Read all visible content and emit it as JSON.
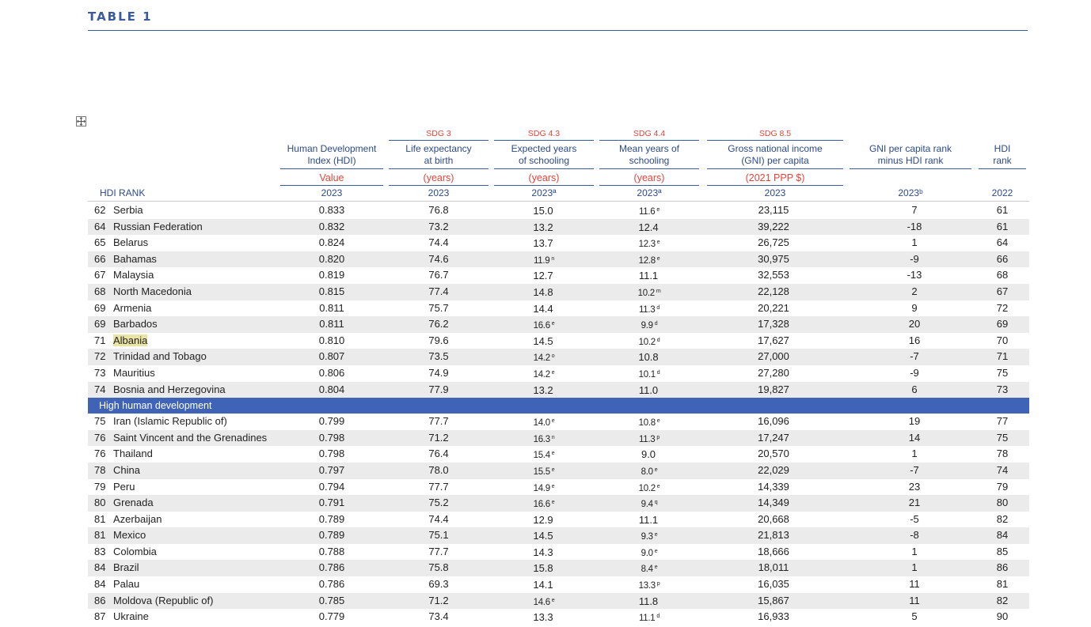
{
  "title": "TABLE 1",
  "header": {
    "hdi_rank_label": "HDI RANK",
    "columns": [
      {
        "sdg": "",
        "name_line1": "Human Development",
        "name_line2": "Index (HDI)",
        "unit": "Value",
        "year": "2023"
      },
      {
        "sdg": "SDG 3",
        "name_line1": "Life expectancy",
        "name_line2": "at birth",
        "unit": "(years)",
        "year": "2023"
      },
      {
        "sdg": "SDG 4.3",
        "name_line1": "Expected years",
        "name_line2": "of schooling",
        "unit": "(years)",
        "year": "2023ª"
      },
      {
        "sdg": "SDG 4.4",
        "name_line1": "Mean years of",
        "name_line2": "schooling",
        "unit": "(years)",
        "year": "2023ª"
      },
      {
        "sdg": "SDG 8.5",
        "name_line1": "Gross national income",
        "name_line2": "(GNI) per capita",
        "unit": "(2021 PPP $)",
        "year": "2023"
      },
      {
        "sdg": "",
        "name_line1": "GNI per capita rank",
        "name_line2": "minus HDI rank",
        "unit": "",
        "year": "2023ᵇ"
      },
      {
        "sdg": "",
        "name_line1": "HDI",
        "name_line2": "rank",
        "unit": "",
        "year": "2022"
      }
    ]
  },
  "section_high": "High human development",
  "rows_top": [
    {
      "rank": "62",
      "country": "Serbia",
      "hdi": "0.833",
      "life": "76.8",
      "exp": "15.0",
      "exp_note": "",
      "mean": "11.6",
      "mean_note": "e",
      "gni": "23,115",
      "gni_rank": "7",
      "hdi2022": "61"
    },
    {
      "rank": "64",
      "country": "Russian Federation",
      "hdi": "0.832",
      "life": "73.2",
      "exp": "13.2",
      "exp_note": "",
      "mean": "12.4",
      "mean_note": "",
      "gni": "39,222",
      "gni_rank": "-18",
      "hdi2022": "61"
    },
    {
      "rank": "65",
      "country": "Belarus",
      "hdi": "0.824",
      "life": "74.4",
      "exp": "13.7",
      "exp_note": "",
      "mean": "12.3",
      "mean_note": "e",
      "gni": "26,725",
      "gni_rank": "1",
      "hdi2022": "64"
    },
    {
      "rank": "66",
      "country": "Bahamas",
      "hdi": "0.820",
      "life": "74.6",
      "exp": "11.9",
      "exp_note": "n",
      "mean": "12.8",
      "mean_note": "e",
      "gni": "30,975",
      "gni_rank": "-9",
      "hdi2022": "66"
    },
    {
      "rank": "67",
      "country": "Malaysia",
      "hdi": "0.819",
      "life": "76.7",
      "exp": "12.7",
      "exp_note": "",
      "mean": "11.1",
      "mean_note": "",
      "gni": "32,553",
      "gni_rank": "-13",
      "hdi2022": "68"
    },
    {
      "rank": "68",
      "country": "North Macedonia",
      "hdi": "0.815",
      "life": "77.4",
      "exp": "14.8",
      "exp_note": "",
      "mean": "10.2",
      "mean_note": "m",
      "gni": "22,128",
      "gni_rank": "2",
      "hdi2022": "67"
    },
    {
      "rank": "69",
      "country": "Armenia",
      "hdi": "0.811",
      "life": "75.7",
      "exp": "14.4",
      "exp_note": "",
      "mean": "11.3",
      "mean_note": "d",
      "gni": "20,221",
      "gni_rank": "9",
      "hdi2022": "72"
    },
    {
      "rank": "69",
      "country": "Barbados",
      "hdi": "0.811",
      "life": "76.2",
      "exp": "16.6",
      "exp_note": "e",
      "mean": "9.9",
      "mean_note": "d",
      "gni": "17,328",
      "gni_rank": "20",
      "hdi2022": "69"
    },
    {
      "rank": "71",
      "country": "Albania",
      "hdi": "0.810",
      "life": "79.6",
      "exp": "14.5",
      "exp_note": "",
      "mean": "10.2",
      "mean_note": "d",
      "gni": "17,627",
      "gni_rank": "16",
      "hdi2022": "70"
    },
    {
      "rank": "72",
      "country": "Trinidad and Tobago",
      "hdi": "0.807",
      "life": "73.5",
      "exp": "14.2",
      "exp_note": "o",
      "mean": "10.8",
      "mean_note": "",
      "gni": "27,000",
      "gni_rank": "-7",
      "hdi2022": "71"
    },
    {
      "rank": "73",
      "country": "Mauritius",
      "hdi": "0.806",
      "life": "74.9",
      "exp": "14.2",
      "exp_note": "e",
      "mean": "10.1",
      "mean_note": "d",
      "gni": "27,280",
      "gni_rank": "-9",
      "hdi2022": "75"
    },
    {
      "rank": "74",
      "country": "Bosnia and Herzegovina",
      "hdi": "0.804",
      "life": "77.9",
      "exp": "13.2",
      "exp_note": "",
      "mean": "11.0",
      "mean_note": "",
      "gni": "19,827",
      "gni_rank": "6",
      "hdi2022": "73"
    }
  ],
  "rows_bottom": [
    {
      "rank": "75",
      "country": "Iran (Islamic Republic of)",
      "hdi": "0.799",
      "life": "77.7",
      "exp": "14.0",
      "exp_note": "e",
      "mean": "10.8",
      "mean_note": "e",
      "gni": "16,096",
      "gni_rank": "19",
      "hdi2022": "77"
    },
    {
      "rank": "76",
      "country": "Saint Vincent and the Grenadines",
      "hdi": "0.798",
      "life": "71.2",
      "exp": "16.3",
      "exp_note": "n",
      "mean": "11.3",
      "mean_note": "p",
      "gni": "17,247",
      "gni_rank": "14",
      "hdi2022": "75"
    },
    {
      "rank": "76",
      "country": "Thailand",
      "hdi": "0.798",
      "life": "76.4",
      "exp": "15.4",
      "exp_note": "e",
      "mean": "9.0",
      "mean_note": "",
      "gni": "20,570",
      "gni_rank": "1",
      "hdi2022": "78"
    },
    {
      "rank": "78",
      "country": "China",
      "hdi": "0.797",
      "life": "78.0",
      "exp": "15.5",
      "exp_note": "e",
      "mean": "8.0",
      "mean_note": "e",
      "gni": "22,029",
      "gni_rank": "-7",
      "hdi2022": "74"
    },
    {
      "rank": "79",
      "country": "Peru",
      "hdi": "0.794",
      "life": "77.7",
      "exp": "14.9",
      "exp_note": "e",
      "mean": "10.2",
      "mean_note": "e",
      "gni": "14,339",
      "gni_rank": "23",
      "hdi2022": "79"
    },
    {
      "rank": "80",
      "country": "Grenada",
      "hdi": "0.791",
      "life": "75.2",
      "exp": "16.6",
      "exp_note": "e",
      "mean": "9.4",
      "mean_note": "q",
      "gni": "14,349",
      "gni_rank": "21",
      "hdi2022": "80"
    },
    {
      "rank": "81",
      "country": "Azerbaijan",
      "hdi": "0.789",
      "life": "74.4",
      "exp": "12.9",
      "exp_note": "",
      "mean": "11.1",
      "mean_note": "",
      "gni": "20,668",
      "gni_rank": "-5",
      "hdi2022": "82"
    },
    {
      "rank": "81",
      "country": "Mexico",
      "hdi": "0.789",
      "life": "75.1",
      "exp": "14.5",
      "exp_note": "",
      "mean": "9.3",
      "mean_note": "e",
      "gni": "21,813",
      "gni_rank": "-8",
      "hdi2022": "84"
    },
    {
      "rank": "83",
      "country": "Colombia",
      "hdi": "0.788",
      "life": "77.7",
      "exp": "14.3",
      "exp_note": "",
      "mean": "9.0",
      "mean_note": "e",
      "gni": "18,666",
      "gni_rank": "1",
      "hdi2022": "85"
    },
    {
      "rank": "84",
      "country": "Brazil",
      "hdi": "0.786",
      "life": "75.8",
      "exp": "15.8",
      "exp_note": "",
      "mean": "8.4",
      "mean_note": "e",
      "gni": "18,011",
      "gni_rank": "1",
      "hdi2022": "86"
    },
    {
      "rank": "84",
      "country": "Palau",
      "hdi": "0.786",
      "life": "69.3",
      "exp": "14.1",
      "exp_note": "",
      "mean": "13.3",
      "mean_note": "p",
      "gni": "16,035",
      "gni_rank": "11",
      "hdi2022": "81"
    },
    {
      "rank": "86",
      "country": "Moldova (Republic of)",
      "hdi": "0.785",
      "life": "71.2",
      "exp": "14.6",
      "exp_note": "e",
      "mean": "11.8",
      "mean_note": "",
      "gni": "15,867",
      "gni_rank": "11",
      "hdi2022": "82"
    },
    {
      "rank": "87",
      "country": "Ukraine",
      "hdi": "0.779",
      "life": "73.4",
      "exp": "13.3",
      "exp_note": "",
      "mean": "11.1",
      "mean_note": "d",
      "gni": "16,933",
      "gni_rank": "5",
      "hdi2022": "90"
    }
  ],
  "highlight_country": "Albania",
  "colors": {
    "accent": "#3a5ba0",
    "section_bar": "#3f63b6",
    "sdg_red": "#e0453a",
    "shade": "#ebebeb",
    "highlight": "#e9e4a6"
  }
}
